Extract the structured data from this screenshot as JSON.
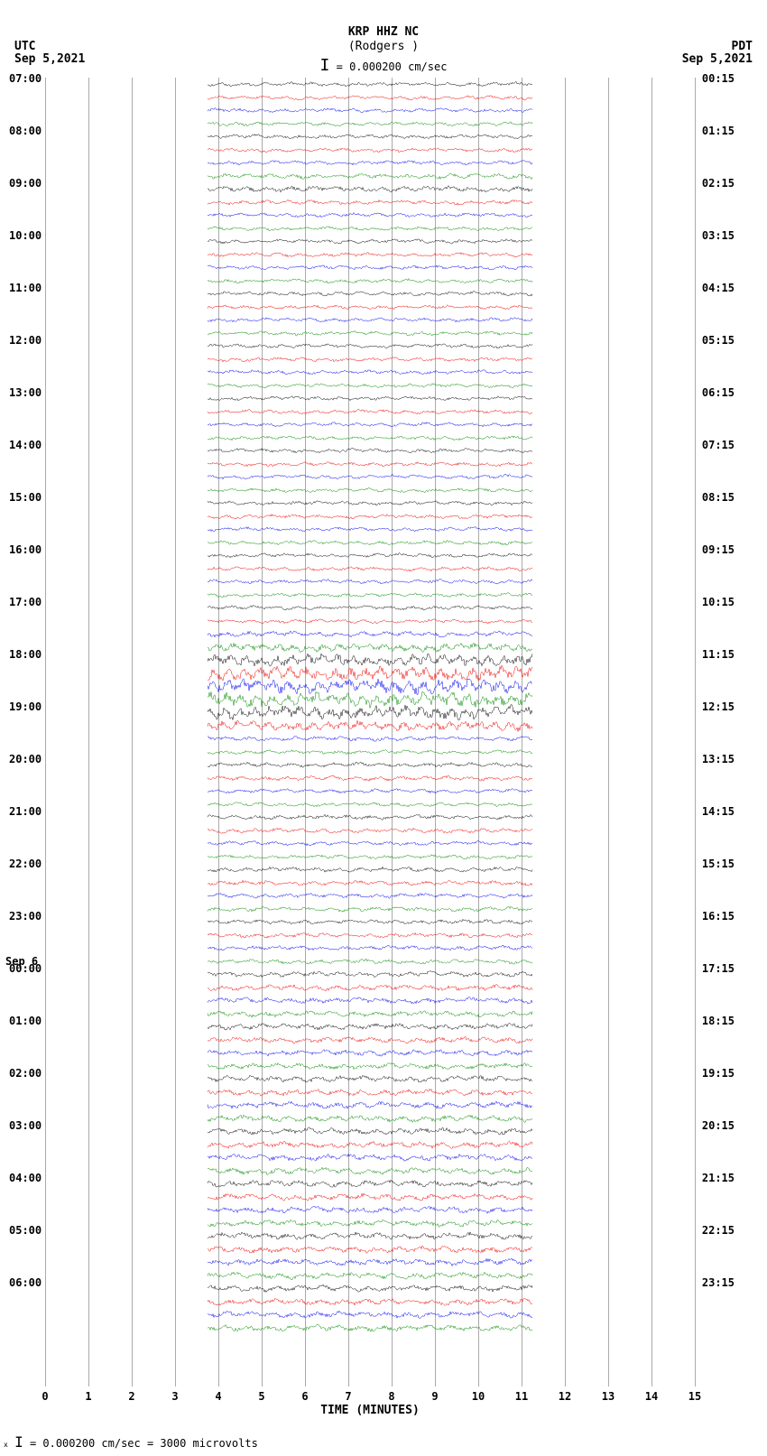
{
  "header": {
    "station": "KRP HHZ NC",
    "location": "(Rodgers )",
    "scale_text": "= 0.000200 cm/sec",
    "tz_left": "UTC",
    "date_left": "Sep 5,2021",
    "tz_right": "PDT",
    "date_right": "Sep 5,2021"
  },
  "footer_text": "= 0.000200 cm/sec =    3000 microvolts",
  "plot": {
    "x_ticks": [
      0,
      1,
      2,
      3,
      4,
      5,
      6,
      7,
      8,
      9,
      10,
      11,
      12,
      13,
      14,
      15
    ],
    "x_title": "TIME (MINUTES)",
    "row_height": 14.5,
    "colors": [
      "#000000",
      "#ee0000",
      "#0000ee",
      "#008800"
    ],
    "grid_color": "#aaaaaa",
    "utc_hours": [
      "07:00",
      "08:00",
      "09:00",
      "10:00",
      "11:00",
      "12:00",
      "13:00",
      "14:00",
      "15:00",
      "16:00",
      "17:00",
      "18:00",
      "19:00",
      "20:00",
      "21:00",
      "22:00",
      "23:00",
      "00:00",
      "01:00",
      "02:00",
      "03:00",
      "04:00",
      "05:00",
      "06:00"
    ],
    "pdt_hours": [
      "00:15",
      "01:15",
      "02:15",
      "03:15",
      "04:15",
      "05:15",
      "06:15",
      "07:15",
      "08:15",
      "09:15",
      "10:15",
      "11:15",
      "12:15",
      "13:15",
      "14:15",
      "15:15",
      "16:15",
      "17:15",
      "18:15",
      "19:15",
      "20:15",
      "21:15",
      "22:15",
      "23:15"
    ],
    "day_break": {
      "index": 17,
      "label": "Sep 6"
    },
    "amplitude_profile": [
      3.5,
      3.5,
      3.5,
      3.5,
      3.5,
      3.5,
      3.5,
      4.5,
      5,
      4,
      3.5,
      3.5,
      3.5,
      3.5,
      3.5,
      3.5,
      3.5,
      3.5,
      3.5,
      3.5,
      3.5,
      3.5,
      3.5,
      3.5,
      3.5,
      3.5,
      3.5,
      3.5,
      3.5,
      3.5,
      3.5,
      3.5,
      3.5,
      3.5,
      3.5,
      3.5,
      3.5,
      3.5,
      3.5,
      3.5,
      3.5,
      3.5,
      5,
      7,
      10,
      12,
      12,
      12,
      11,
      8,
      4,
      3.5,
      4,
      4,
      3.5,
      3.5,
      4,
      4,
      3.5,
      3.5,
      4,
      4,
      4,
      4,
      4,
      4,
      4,
      4,
      4.5,
      5,
      5,
      5,
      5,
      5,
      5,
      5,
      5.5,
      5.5,
      5.5,
      5.5,
      5.5,
      5.5,
      5.5,
      5.5,
      5.5,
      5.5,
      5.5,
      5.5,
      5.5,
      5.5,
      5.5,
      5.5,
      5.5,
      5.5,
      5.5,
      5.5
    ]
  }
}
